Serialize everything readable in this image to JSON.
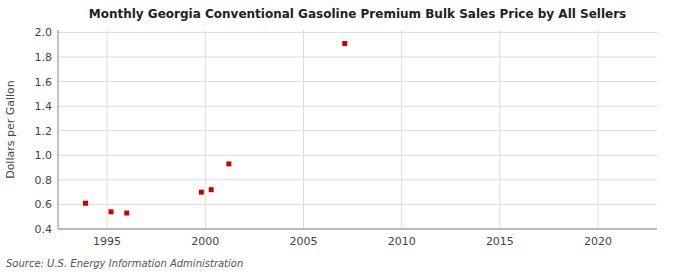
{
  "chart_data": {
    "type": "scatter",
    "title": "Monthly Georgia Conventional Gasoline Premium Bulk Sales Price by All Sellers",
    "ylabel": "Dollars per Gallon",
    "annotations": [
      "Source: U.S. Energy Information Administration"
    ],
    "x": [
      1993.9,
      1995.2,
      1996.0,
      1999.8,
      2000.3,
      2001.2,
      2007.1
    ],
    "values": [
      0.61,
      0.54,
      0.53,
      0.7,
      0.72,
      0.93,
      1.91
    ],
    "color": "#cc0000",
    "marker": "square",
    "xlim": [
      1992.5,
      2023
    ],
    "ylim": [
      0.4,
      2.02
    ],
    "xticks": [
      1995,
      2000,
      2005,
      2010,
      2015,
      2020
    ],
    "yticks": [
      0.4,
      0.6,
      0.8,
      {
        "value": 1.0,
        "label": "1.0"
      },
      1.2,
      1.4,
      1.6,
      1.8,
      {
        "value": 2.0,
        "label": "2.0"
      }
    ],
    "grid": true
  }
}
